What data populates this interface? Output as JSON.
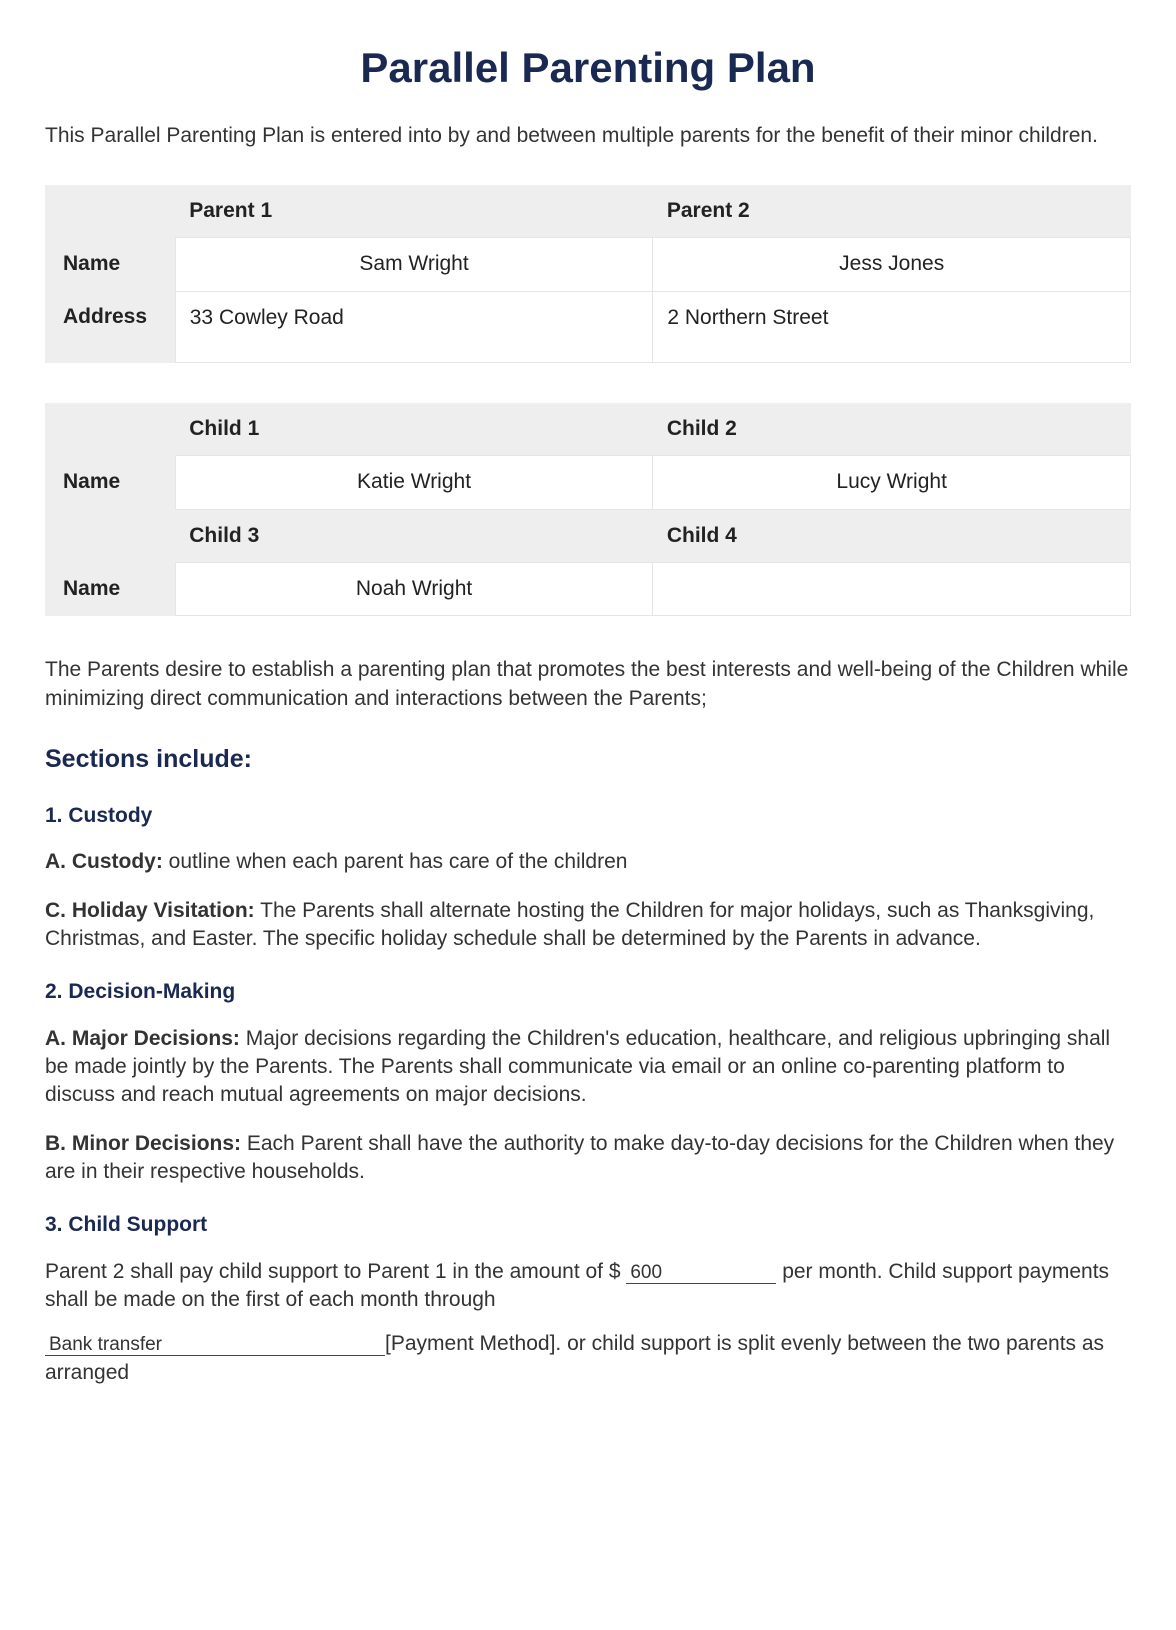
{
  "title": "Parallel Parenting Plan",
  "intro": "This Parallel Parenting Plan is entered into by and between multiple parents for the benefit of their minor children.",
  "parents_table": {
    "headers": [
      "Parent 1",
      "Parent 2"
    ],
    "row_labels": [
      "Name",
      "Address"
    ],
    "names": [
      "Sam Wright",
      "Jess Jones"
    ],
    "addresses": [
      "33 Cowley Road",
      "2 Northern Street"
    ]
  },
  "children_table": {
    "headers12": [
      "Child 1",
      "Child 2"
    ],
    "headers34": [
      "Child 3",
      "Child 4"
    ],
    "row_label": "Name",
    "names12": [
      "Katie Wright",
      "Lucy Wright"
    ],
    "names34": [
      "Noah Wright",
      ""
    ]
  },
  "para2": "The Parents desire to establish a parenting plan that promotes the best interests and well-being of the Children while minimizing direct communication and interactions between the Parents;",
  "sections_heading": "Sections include:",
  "s1": {
    "heading": "1. Custody",
    "a_label": "A. Custody:",
    "a_text": " outline when each parent has care of the children",
    "c_label": "C. Holiday Visitation:",
    "c_text": " The Parents shall alternate hosting the Children for major holidays, such as Thanksgiving, Christmas, and Easter. The specific holiday schedule shall be determined by the Parents in advance."
  },
  "s2": {
    "heading": "2. Decision-Making",
    "a_label": "A. Major Decisions:",
    "a_text": " Major decisions regarding the Children's education, healthcare, and religious upbringing shall be made jointly by the Parents. The Parents shall communicate via email or an online co-parenting platform to discuss and reach mutual agreements on major decisions.",
    "b_label": "B. Minor Decisions:",
    "b_text": " Each Parent shall have the authority to make day-to-day decisions for the Children when they are in their respective households."
  },
  "s3": {
    "heading": "3. Child Support",
    "pre_amount": "Parent 2 shall pay child support to Parent 1 in the amount of $ ",
    "amount": "600",
    "post_amount": " per month. Child support payments shall be made on the first of each month through",
    "method": "Bank transfer",
    "method_tail": "[Payment Method]. or child support is split evenly between the two parents as arranged"
  },
  "colors": {
    "heading": "#1a2951",
    "table_bg": "#eeeeee",
    "cell_bg": "#ffffff",
    "text": "#333333"
  }
}
